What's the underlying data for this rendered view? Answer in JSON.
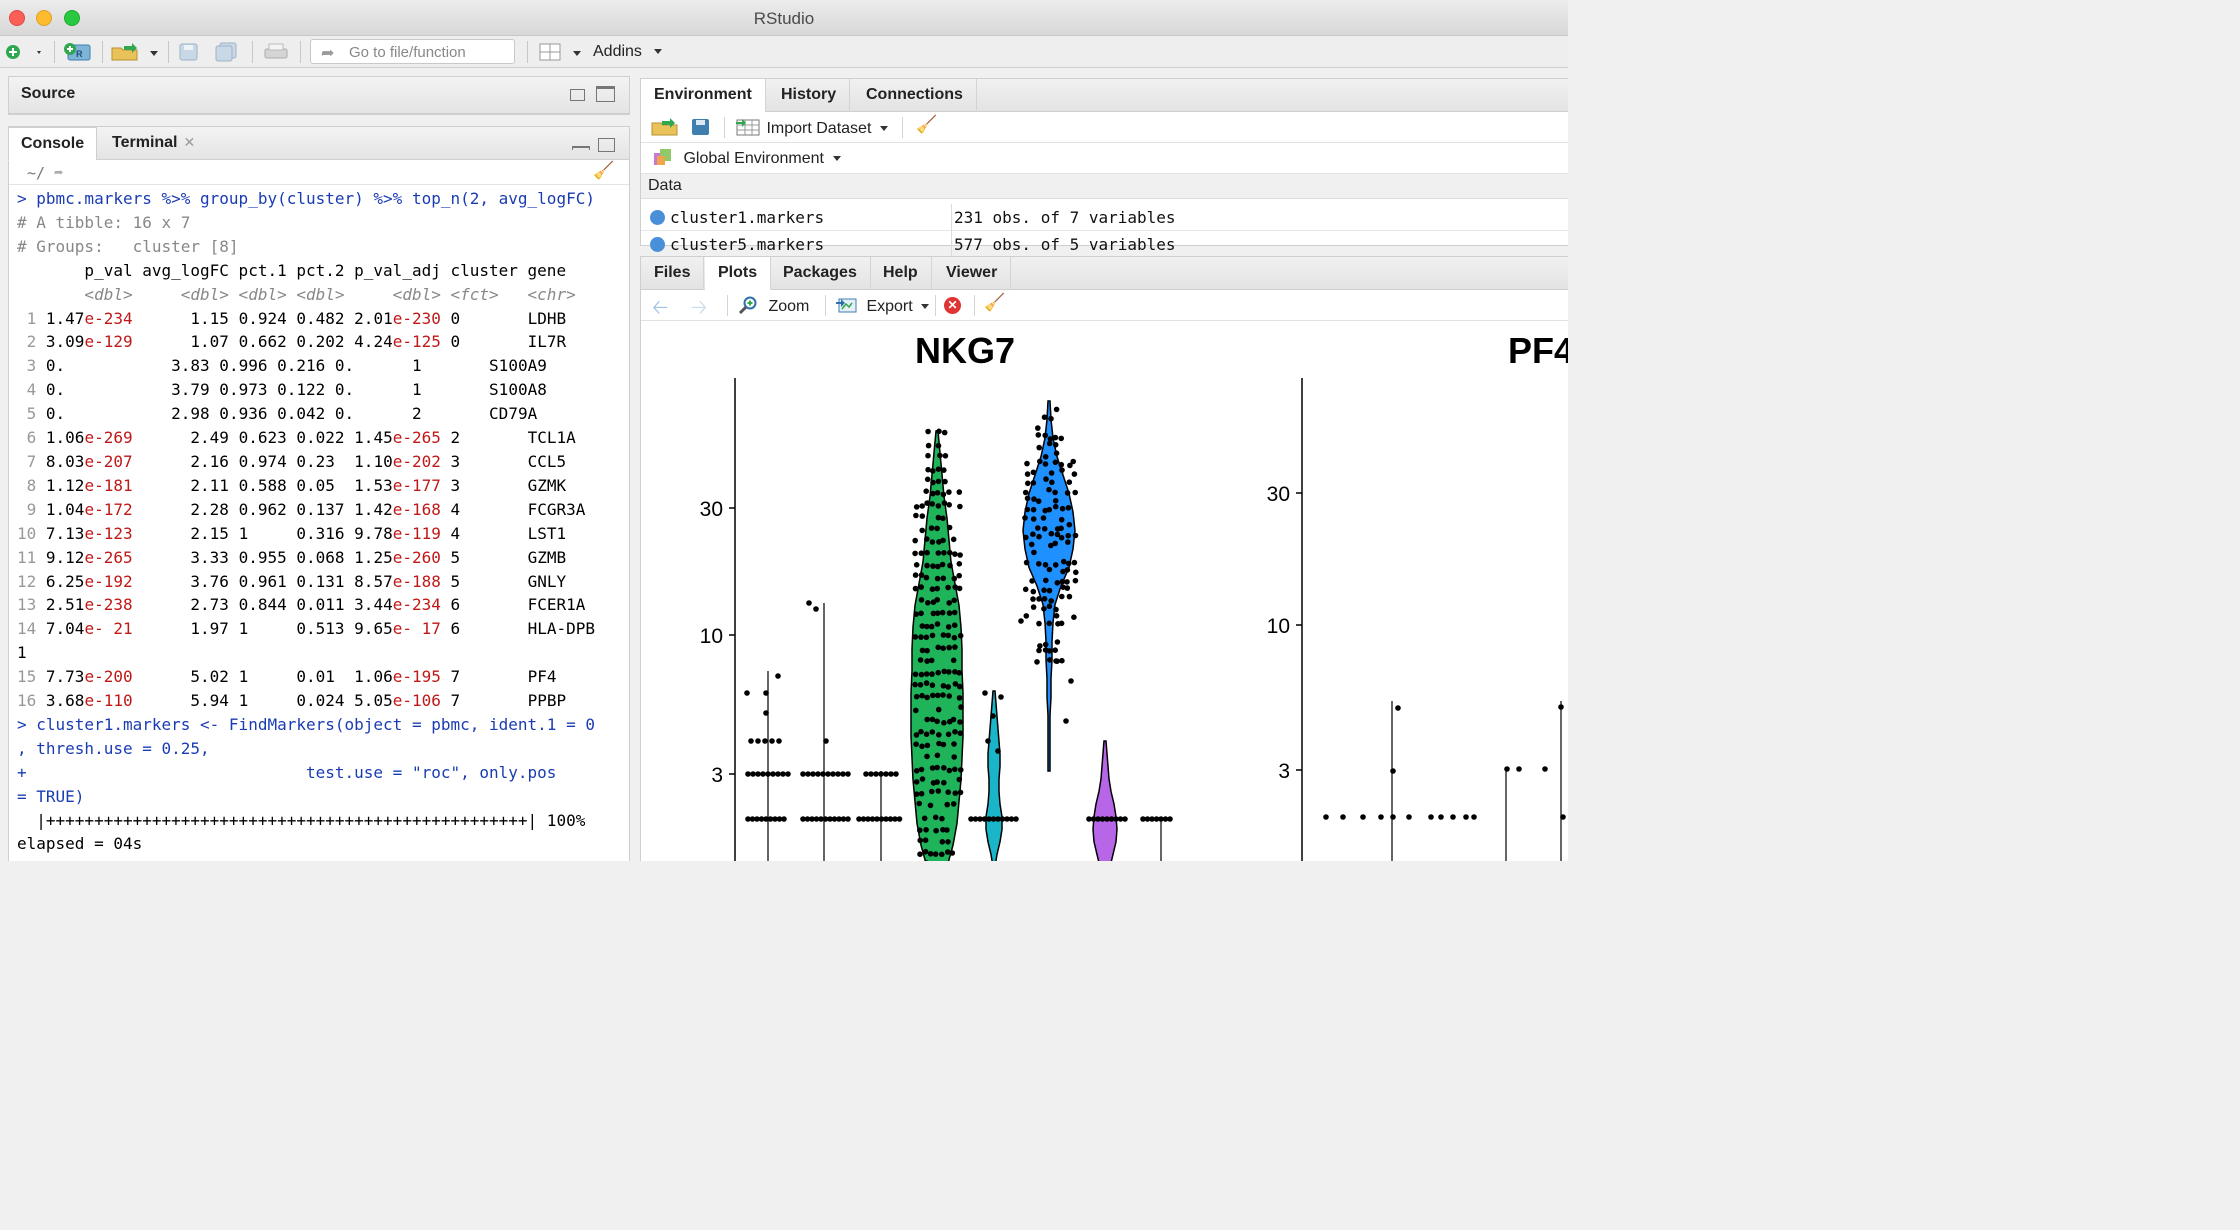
{
  "window": {
    "title": "RStudio"
  },
  "toolbar": {
    "goto_placeholder": "Go to file/function",
    "addins_label": "Addins"
  },
  "source_pane": {
    "label": "Source"
  },
  "console_pane": {
    "tabs": [
      {
        "label": "Console",
        "active": true
      },
      {
        "label": "Terminal",
        "active": false,
        "closable": true
      }
    ],
    "path": "~/",
    "lines": [
      {
        "kind": "cmd",
        "text": "> pbmc.markers %>% group_by(cluster) %>% top_n(2, avg_logFC)"
      },
      {
        "kind": "comment",
        "text": "# A tibble: 16 x 7"
      },
      {
        "kind": "comment",
        "text": "# Groups:   cluster [8]"
      },
      {
        "kind": "header",
        "text": "       p_val avg_logFC pct.1 pct.2 p_val_adj cluster gene"
      },
      {
        "kind": "types",
        "text": "       <dbl>     <dbl> <dbl> <dbl>     <dbl> <fct>   <chr>"
      }
    ],
    "table_rows": [
      {
        "n": " 1",
        "p_val": "1.47",
        "p_exp": "e-234",
        "avg_logFC": "1.15",
        "pct1": "0.924",
        "pct2": "0.482",
        "adj": "2.01",
        "adj_exp": "e-230",
        "cluster": "0",
        "gene": "LDHB"
      },
      {
        "n": " 2",
        "p_val": "3.09",
        "p_exp": "e-129",
        "avg_logFC": "1.07",
        "pct1": "0.662",
        "pct2": "0.202",
        "adj": "4.24",
        "adj_exp": "e-125",
        "cluster": "0",
        "gene": "IL7R"
      },
      {
        "n": " 3",
        "p_val": "0.",
        "p_exp": "",
        "avg_logFC": "3.83",
        "pct1": "0.996",
        "pct2": "0.216",
        "adj": "0.",
        "adj_exp": "",
        "cluster": "1",
        "gene": "S100A9"
      },
      {
        "n": " 4",
        "p_val": "0.",
        "p_exp": "",
        "avg_logFC": "3.79",
        "pct1": "0.973",
        "pct2": "0.122",
        "adj": "0.",
        "adj_exp": "",
        "cluster": "1",
        "gene": "S100A8"
      },
      {
        "n": " 5",
        "p_val": "0.",
        "p_exp": "",
        "avg_logFC": "2.98",
        "pct1": "0.936",
        "pct2": "0.042",
        "adj": "0.",
        "adj_exp": "",
        "cluster": "2",
        "gene": "CD79A"
      },
      {
        "n": " 6",
        "p_val": "1.06",
        "p_exp": "e-269",
        "avg_logFC": "2.49",
        "pct1": "0.623",
        "pct2": "0.022",
        "adj": "1.45",
        "adj_exp": "e-265",
        "cluster": "2",
        "gene": "TCL1A"
      },
      {
        "n": " 7",
        "p_val": "8.03",
        "p_exp": "e-207",
        "avg_logFC": "2.16",
        "pct1": "0.974",
        "pct2": "0.23 ",
        "adj": "1.10",
        "adj_exp": "e-202",
        "cluster": "3",
        "gene": "CCL5"
      },
      {
        "n": " 8",
        "p_val": "1.12",
        "p_exp": "e-181",
        "avg_logFC": "2.11",
        "pct1": "0.588",
        "pct2": "0.05 ",
        "adj": "1.53",
        "adj_exp": "e-177",
        "cluster": "3",
        "gene": "GZMK"
      },
      {
        "n": " 9",
        "p_val": "1.04",
        "p_exp": "e-172",
        "avg_logFC": "2.28",
        "pct1": "0.962",
        "pct2": "0.137",
        "adj": "1.42",
        "adj_exp": "e-168",
        "cluster": "4",
        "gene": "FCGR3A"
      },
      {
        "n": "10",
        "p_val": "7.13",
        "p_exp": "e-123",
        "avg_logFC": "2.15",
        "pct1": "1    ",
        "pct2": "0.316",
        "adj": "9.78",
        "adj_exp": "e-119",
        "cluster": "4",
        "gene": "LST1"
      },
      {
        "n": "11",
        "p_val": "9.12",
        "p_exp": "e-265",
        "avg_logFC": "3.33",
        "pct1": "0.955",
        "pct2": "0.068",
        "adj": "1.25",
        "adj_exp": "e-260",
        "cluster": "5",
        "gene": "GZMB"
      },
      {
        "n": "12",
        "p_val": "6.25",
        "p_exp": "e-192",
        "avg_logFC": "3.76",
        "pct1": "0.961",
        "pct2": "0.131",
        "adj": "8.57",
        "adj_exp": "e-188",
        "cluster": "5",
        "gene": "GNLY"
      },
      {
        "n": "13",
        "p_val": "2.51",
        "p_exp": "e-238",
        "avg_logFC": "2.73",
        "pct1": "0.844",
        "pct2": "0.011",
        "adj": "3.44",
        "adj_exp": "e-234",
        "cluster": "6",
        "gene": "FCER1A"
      },
      {
        "n": "14",
        "p_val": "7.04",
        "p_exp": "e- 21",
        "avg_logFC": "1.97",
        "pct1": "1    ",
        "pct2": "0.513",
        "adj": "9.65",
        "adj_exp": "e- 17",
        "cluster": "6",
        "gene": "HLA-DPB"
      },
      {
        "n": "15",
        "p_val": "7.73",
        "p_exp": "e-200",
        "avg_logFC": "5.02",
        "pct1": "1    ",
        "pct2": "0.01 ",
        "adj": "1.06",
        "adj_exp": "e-195",
        "cluster": "7",
        "gene": "PF4"
      },
      {
        "n": "16",
        "p_val": "3.68",
        "p_exp": "e-110",
        "avg_logFC": "5.94",
        "pct1": "1    ",
        "pct2": "0.024",
        "adj": "5.05",
        "adj_exp": "e-106",
        "cluster": "7",
        "gene": "PPBP"
      }
    ],
    "wrap_after_row_14": "1",
    "after_lines": [
      {
        "kind": "cmd",
        "text": "> cluster1.markers <- FindMarkers(object = pbmc, ident.1 = 0"
      },
      {
        "kind": "cmd",
        "text": ", thresh.use = 0.25,"
      },
      {
        "kind": "cmd",
        "text": "+                             test.use = \"roc\", only.pos"
      },
      {
        "kind": "cmd",
        "text": "= TRUE)"
      },
      {
        "kind": "plain",
        "text": "  |++++++++++++++++++++++++++++++++++++++++++++++++++| 100%"
      },
      {
        "kind": "plain",
        "text": "elapsed = 04s"
      }
    ]
  },
  "env_pane": {
    "tabs": [
      {
        "label": "Environment",
        "active": true
      },
      {
        "label": "History",
        "active": false
      },
      {
        "label": "Connections",
        "active": false
      }
    ],
    "import_label": "Import Dataset",
    "scope_label": "Global Environment",
    "section_label": "Data",
    "rows": [
      {
        "name": "cluster1.markers",
        "value": "231 obs. of 7 variables"
      },
      {
        "name": "cluster5.markers",
        "value": "577 obs. of 5 variables"
      }
    ]
  },
  "files_pane": {
    "tabs": [
      {
        "label": "Files",
        "active": false
      },
      {
        "label": "Plots",
        "active": true
      },
      {
        "label": "Packages",
        "active": false
      },
      {
        "label": "Help",
        "active": false
      },
      {
        "label": "Viewer",
        "active": false
      }
    ],
    "zoom_label": "Zoom",
    "export_label": "Export"
  },
  "colors": {
    "cmd_blue": "#1a3cb3",
    "neg_red": "#c01818",
    "violin_green": "#1fb35a",
    "violin_blue": "#1e90ff",
    "violin_teal": "#1ab5c8",
    "violin_purple": "#b866e8"
  },
  "chart_data": [
    {
      "type": "violin",
      "title": "NKG7",
      "y_scale": "log",
      "y_ticks": [
        3,
        10,
        30
      ],
      "xlabel": "",
      "ylabel": ""
    },
    {
      "type": "violin",
      "title": "PF4",
      "y_scale": "log",
      "y_ticks": [
        3,
        10,
        30
      ],
      "xlabel": "",
      "ylabel": ""
    }
  ]
}
